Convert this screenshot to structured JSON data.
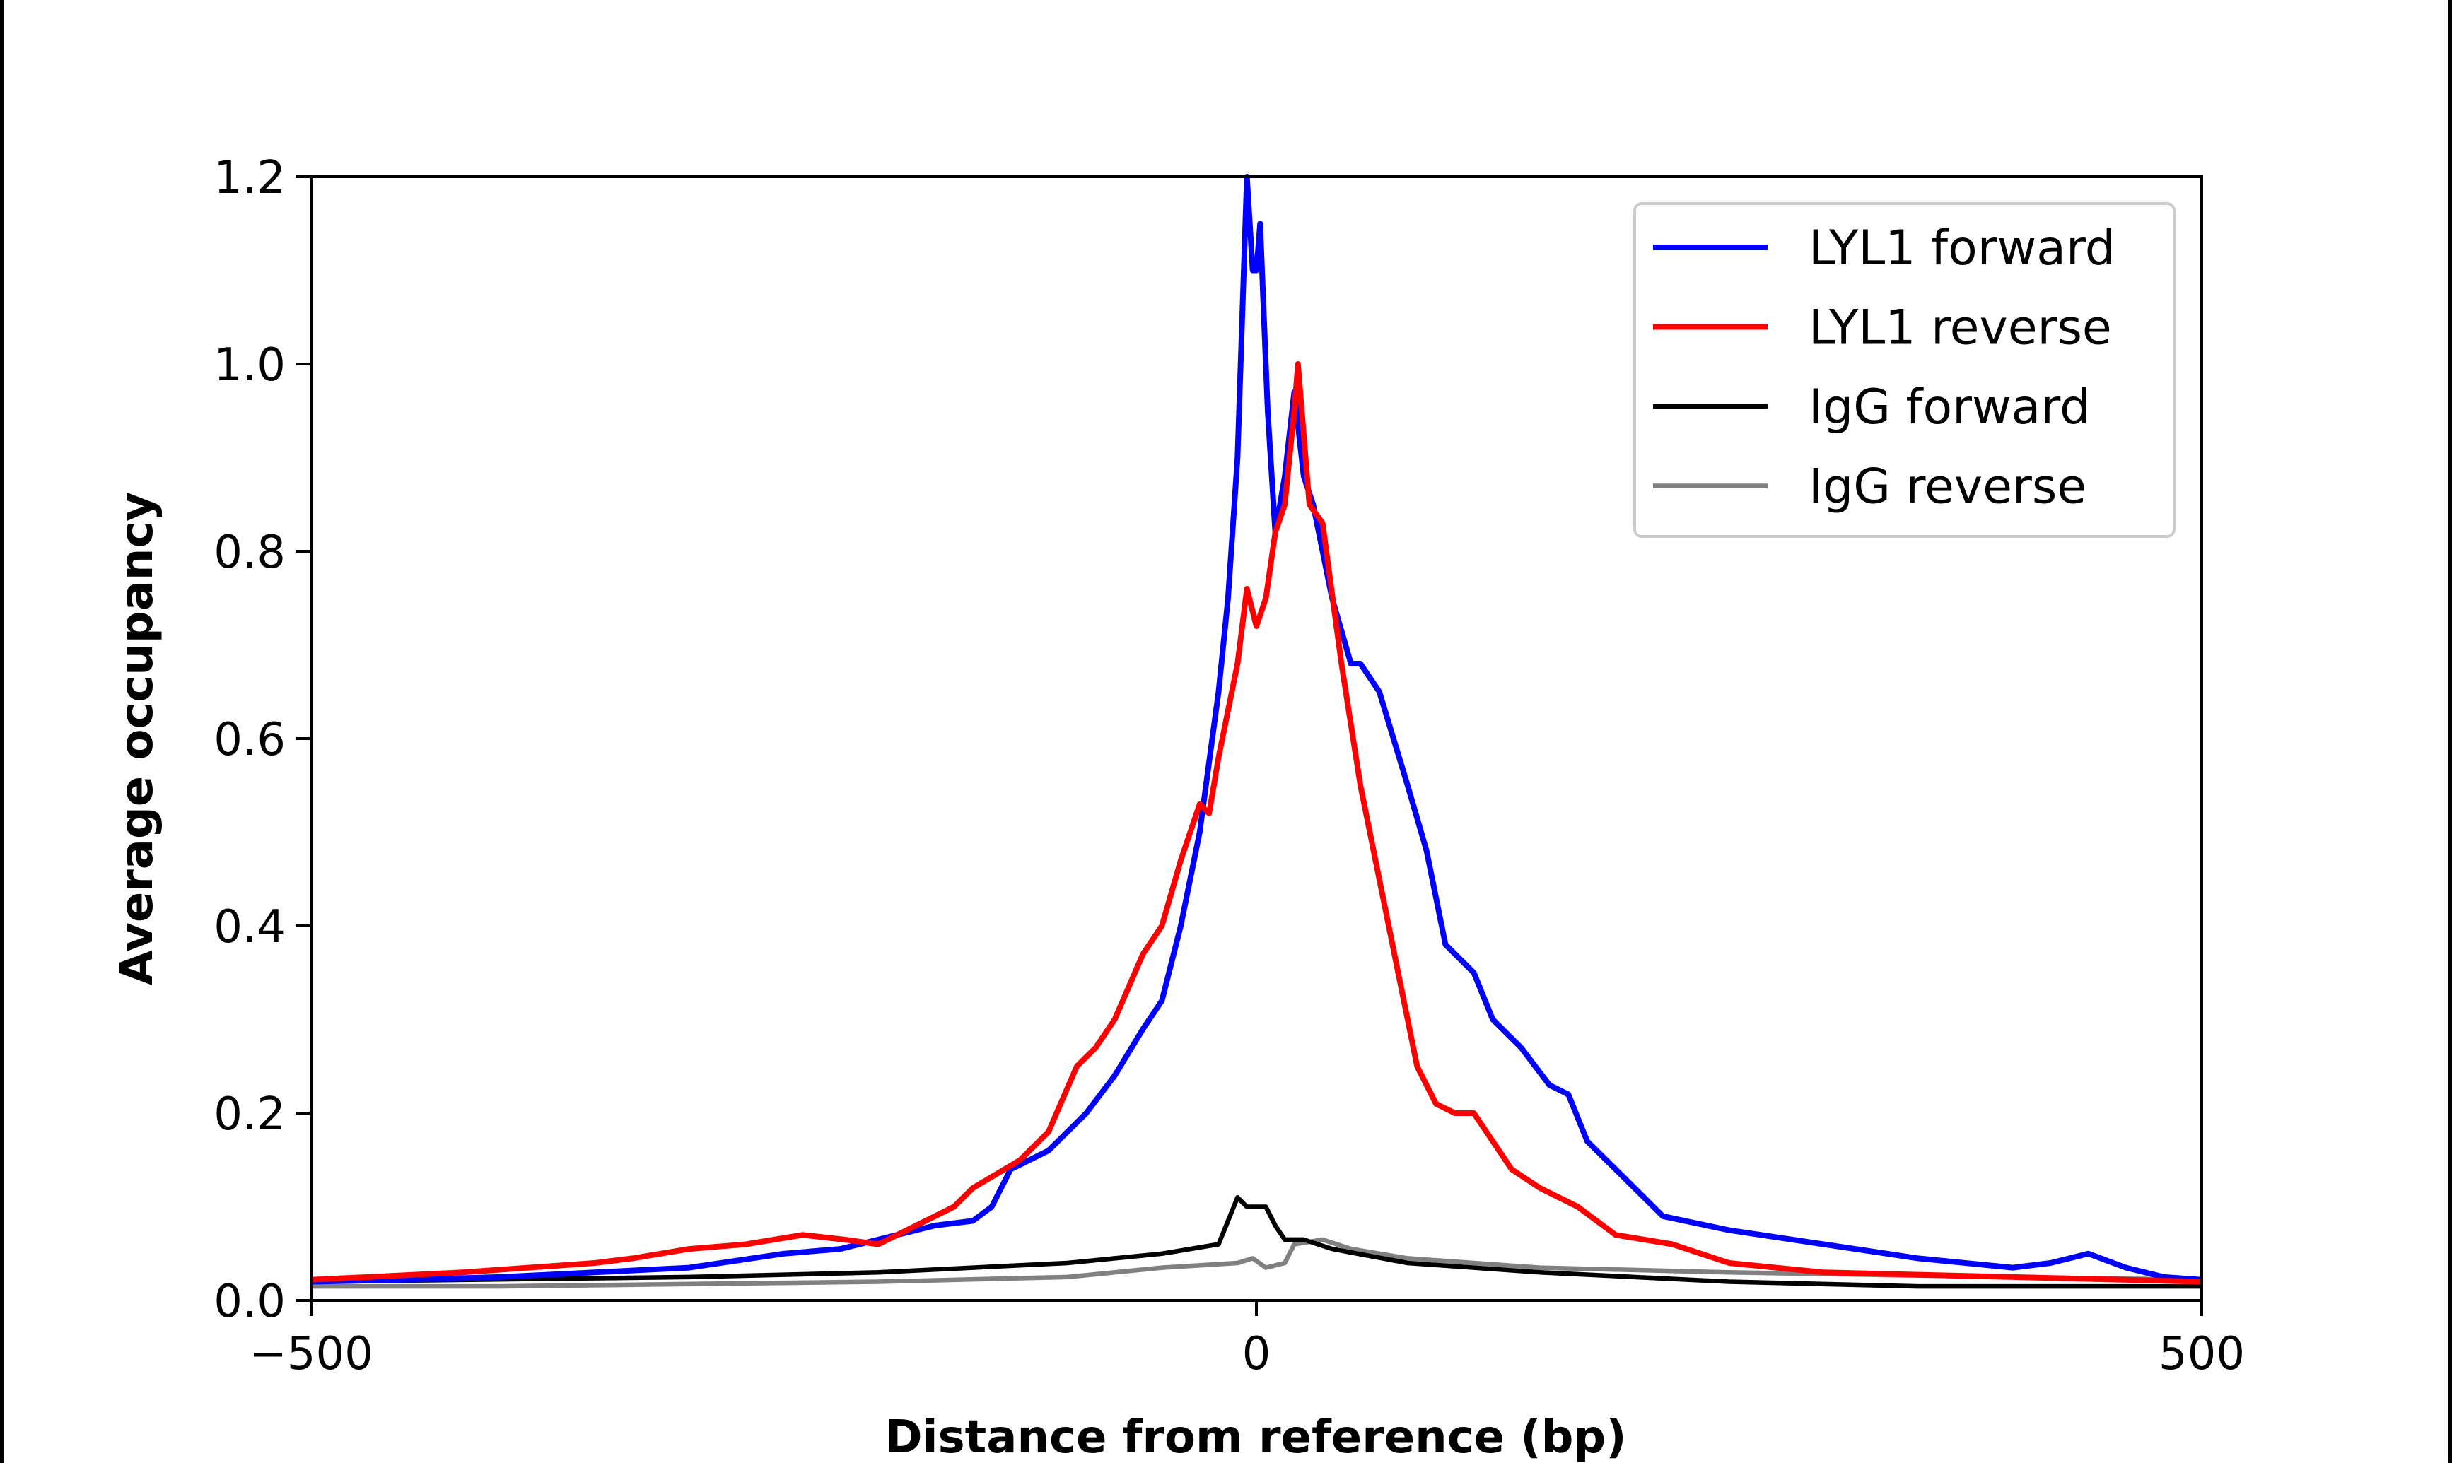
{
  "chart_data": {
    "type": "line",
    "title": "",
    "xlabel": "Distance from reference (bp)",
    "ylabel": "Average occupancy",
    "xlim": [
      -500,
      500
    ],
    "ylim": [
      0,
      1.2
    ],
    "xticks": [
      -500,
      0,
      500
    ],
    "xtick_labels": [
      "−500",
      "0",
      "500"
    ],
    "yticks": [
      0,
      0.2,
      0.4,
      0.6,
      0.8,
      1.0,
      1.2
    ],
    "ytick_labels": [
      "0.0",
      "0.2",
      "0.4",
      "0.6",
      "0.8",
      "1.0",
      "1.2"
    ],
    "grid": false,
    "legend_position": "top-right",
    "series": [
      {
        "name": "LYL1 forward",
        "color": "#0000ff",
        "x": [
          -500,
          -450,
          -400,
          -350,
          -300,
          -250,
          -220,
          -200,
          -170,
          -150,
          -140,
          -130,
          -110,
          -90,
          -75,
          -60,
          -50,
          -40,
          -30,
          -20,
          -15,
          -10,
          -5,
          -2,
          0,
          2,
          6,
          10,
          15,
          20,
          25,
          30,
          40,
          50,
          55,
          65,
          80,
          90,
          100,
          115,
          125,
          140,
          155,
          165,
          175,
          190,
          200,
          215,
          250,
          300,
          350,
          400,
          420,
          440,
          460,
          480,
          500
        ],
        "y": [
          0.02,
          0.022,
          0.025,
          0.03,
          0.035,
          0.05,
          0.055,
          0.065,
          0.08,
          0.085,
          0.1,
          0.14,
          0.16,
          0.2,
          0.24,
          0.29,
          0.32,
          0.4,
          0.5,
          0.65,
          0.75,
          0.9,
          1.2,
          1.1,
          1.1,
          1.15,
          0.95,
          0.82,
          0.88,
          0.97,
          0.88,
          0.85,
          0.75,
          0.68,
          0.68,
          0.65,
          0.55,
          0.48,
          0.38,
          0.35,
          0.3,
          0.27,
          0.23,
          0.22,
          0.17,
          0.14,
          0.12,
          0.09,
          0.075,
          0.06,
          0.045,
          0.035,
          0.04,
          0.05,
          0.035,
          0.025,
          0.022
        ]
      },
      {
        "name": "LYL1 reverse",
        "color": "#ff0000",
        "x": [
          -500,
          -420,
          -350,
          -330,
          -300,
          -270,
          -240,
          -218,
          -200,
          -180,
          -160,
          -150,
          -125,
          -110,
          -95,
          -85,
          -75,
          -60,
          -50,
          -40,
          -30,
          -25,
          -20,
          -10,
          -5,
          0,
          5,
          10,
          15,
          20,
          22,
          28,
          35,
          45,
          55,
          65,
          75,
          85,
          95,
          105,
          115,
          125,
          135,
          150,
          170,
          190,
          220,
          250,
          300,
          400,
          500
        ],
        "y": [
          0.022,
          0.03,
          0.04,
          0.045,
          0.055,
          0.06,
          0.07,
          0.065,
          0.06,
          0.08,
          0.1,
          0.12,
          0.15,
          0.18,
          0.25,
          0.27,
          0.3,
          0.37,
          0.4,
          0.47,
          0.53,
          0.52,
          0.58,
          0.68,
          0.76,
          0.72,
          0.75,
          0.82,
          0.85,
          0.95,
          1.0,
          0.85,
          0.83,
          0.68,
          0.55,
          0.45,
          0.35,
          0.25,
          0.21,
          0.2,
          0.2,
          0.17,
          0.14,
          0.12,
          0.1,
          0.07,
          0.06,
          0.04,
          0.03,
          0.025,
          0.02
        ]
      },
      {
        "name": "IgG forward",
        "color": "#000000",
        "x": [
          -500,
          -300,
          -200,
          -150,
          -100,
          -50,
          -20,
          -10,
          -5,
          5,
          10,
          15,
          25,
          40,
          80,
          150,
          250,
          350,
          400,
          500
        ],
        "y": [
          0.02,
          0.025,
          0.03,
          0.035,
          0.04,
          0.05,
          0.06,
          0.11,
          0.1,
          0.1,
          0.08,
          0.065,
          0.065,
          0.055,
          0.04,
          0.03,
          0.02,
          0.015,
          0.015,
          0.015
        ]
      },
      {
        "name": "IgG reverse",
        "color": "#808080",
        "x": [
          -500,
          -400,
          -200,
          -100,
          -50,
          -10,
          -2,
          5,
          15,
          20,
          35,
          50,
          80,
          150,
          250,
          400,
          500
        ],
        "y": [
          0.015,
          0.015,
          0.02,
          0.025,
          0.035,
          0.04,
          0.045,
          0.035,
          0.04,
          0.06,
          0.065,
          0.055,
          0.045,
          0.035,
          0.03,
          0.025,
          0.022
        ]
      }
    ]
  }
}
